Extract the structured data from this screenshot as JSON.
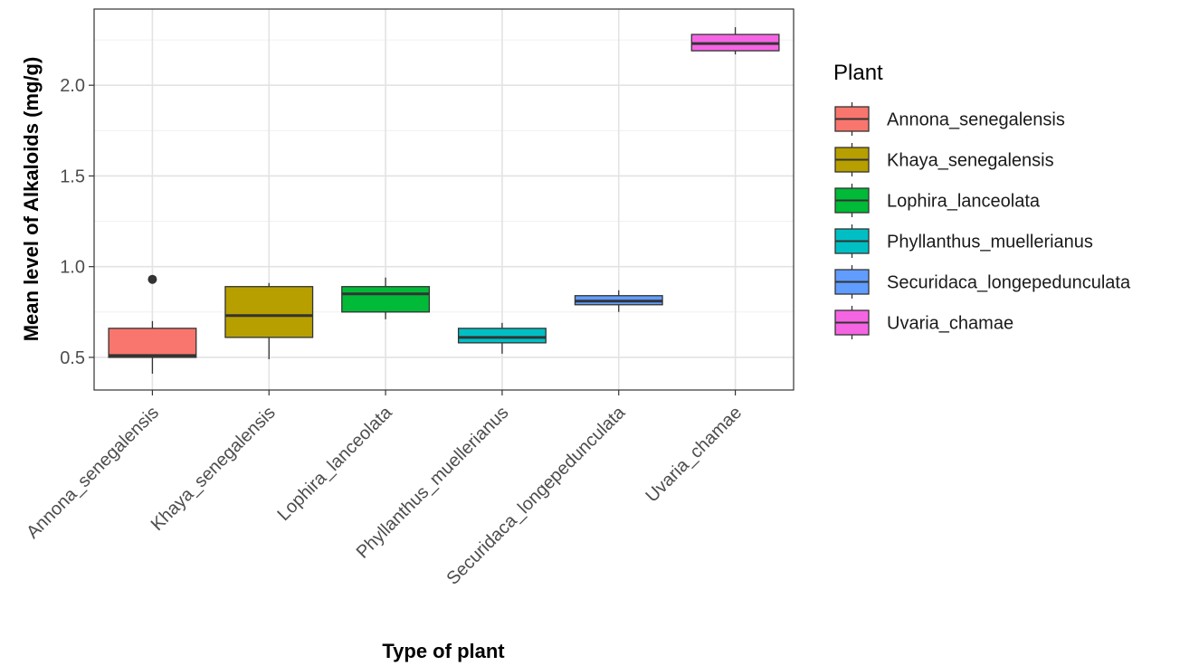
{
  "chart_data": {
    "type": "box",
    "title": "",
    "xlabel": "Type of plant",
    "ylabel": "Mean level of Alkaloids (mg/g)",
    "ylim": [
      0.32,
      2.42
    ],
    "yticks": [
      0.5,
      1.0,
      1.5,
      2.0
    ],
    "ytick_labels": [
      "0.5",
      "1.0",
      "1.5",
      "2.0"
    ],
    "grid": true,
    "legend": {
      "title": "Plant",
      "placement": "right"
    },
    "categories": [
      "Annona_senegalensis",
      "Khaya_senegalensis",
      "Lophira_lanceolata",
      "Phyllanthus_muellerianus",
      "Securidaca_longepedunculata",
      "Uvaria_chamae"
    ],
    "series": [
      {
        "name": "Annona_senegalensis",
        "color": "#F8766D",
        "whisker_low": 0.41,
        "q1": 0.5,
        "median": 0.51,
        "q3": 0.66,
        "whisker_high": 0.7,
        "outliers": [
          0.93
        ]
      },
      {
        "name": "Khaya_senegalensis",
        "color": "#B79F00",
        "whisker_low": 0.49,
        "q1": 0.61,
        "median": 0.73,
        "q3": 0.89,
        "whisker_high": 0.91,
        "outliers": []
      },
      {
        "name": "Lophira_lanceolata",
        "color": "#00BA38",
        "whisker_low": 0.71,
        "q1": 0.75,
        "median": 0.85,
        "q3": 0.89,
        "whisker_high": 0.94,
        "outliers": []
      },
      {
        "name": "Phyllanthus_muellerianus",
        "color": "#00BFC4",
        "whisker_low": 0.52,
        "q1": 0.58,
        "median": 0.61,
        "q3": 0.66,
        "whisker_high": 0.69,
        "outliers": []
      },
      {
        "name": "Securidaca_longepedunculata",
        "color": "#619CFF",
        "whisker_low": 0.75,
        "q1": 0.79,
        "median": 0.81,
        "q3": 0.84,
        "whisker_high": 0.87,
        "outliers": []
      },
      {
        "name": "Uvaria_chamae",
        "color": "#F564E3",
        "whisker_low": 2.17,
        "q1": 2.19,
        "median": 2.23,
        "q3": 2.28,
        "whisker_high": 2.32,
        "outliers": []
      }
    ]
  }
}
